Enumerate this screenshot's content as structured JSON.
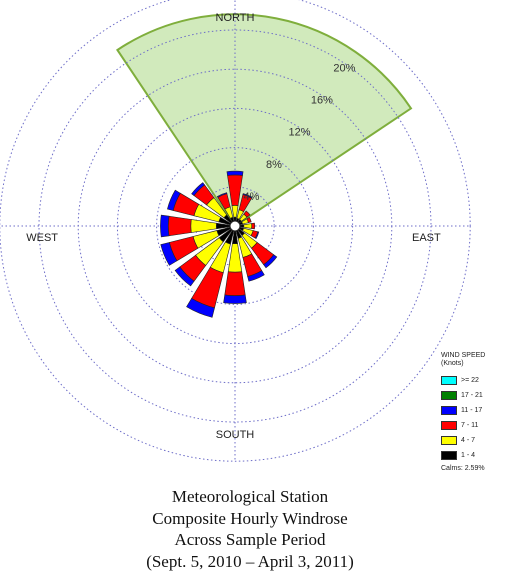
{
  "chart_data": {
    "type": "windrose",
    "title": "",
    "directions": [
      "N",
      "NNE",
      "NE",
      "ENE",
      "E",
      "ESE",
      "SE",
      "SSE",
      "S",
      "SSW",
      "SW",
      "WSW",
      "W",
      "WNW",
      "NW",
      "NNW"
    ],
    "compass_labels": {
      "north": "NORTH",
      "east": "EAST",
      "south": "SOUTH",
      "west": "WEST"
    },
    "radial_axis": {
      "unit": "%",
      "ticks": [
        4,
        8,
        12,
        16,
        20
      ],
      "tick_labels": [
        "4%",
        "8%",
        "12%",
        "16%",
        "20%"
      ],
      "max": 21.6
    },
    "grid": true,
    "highlight_sector": {
      "from_deg": -33.75,
      "to_deg": 56.25,
      "radius_pct": 21.6,
      "color": "#c9e6b0",
      "edge_color": "#7fae3c"
    },
    "series": [
      {
        "name": "1 - 4",
        "color": "#000000",
        "values": [
          0.4,
          0.3,
          0.3,
          0.3,
          0.4,
          0.4,
          0.7,
          0.8,
          1.3,
          1.4,
          1.5,
          1.4,
          1.4,
          1.2,
          0.9,
          0.4
        ]
      },
      {
        "name": "4 - 7",
        "color": "#ffff00",
        "values": [
          1.2,
          0.9,
          0.7,
          0.6,
          0.8,
          1.0,
          1.6,
          2.0,
          2.9,
          3.0,
          3.0,
          2.5,
          2.6,
          2.6,
          2.2,
          1.1
        ]
      },
      {
        "name": "7 - 11",
        "color": "#ff0000",
        "values": [
          3.1,
          1.6,
          0.4,
          0.3,
          0.3,
          0.5,
          2.1,
          2.0,
          2.4,
          3.7,
          2.0,
          2.5,
          2.3,
          2.2,
          1.6,
          1.4
        ]
      },
      {
        "name": "11 - 17",
        "color": "#0000ff",
        "values": [
          0.4,
          0.1,
          0.0,
          0.0,
          0.0,
          0.1,
          0.4,
          0.5,
          0.8,
          1.0,
          0.6,
          0.9,
          0.8,
          0.6,
          0.3,
          0.1
        ]
      },
      {
        "name": "17 - 21",
        "color": "#008000",
        "values": [
          0,
          0,
          0,
          0,
          0,
          0,
          0,
          0,
          0,
          0,
          0,
          0,
          0,
          0,
          0,
          0
        ]
      },
      {
        "name": ">= 22",
        "color": "#00ffff",
        "values": [
          0,
          0,
          0,
          0,
          0,
          0,
          0,
          0,
          0,
          0,
          0,
          0,
          0,
          0,
          0,
          0
        ]
      }
    ],
    "legend": {
      "title": "WIND SPEED",
      "units": "(Knots)",
      "position": "bottom-right",
      "calms": "Calms: 2.59%",
      "items": [
        {
          "label": ">= 22",
          "color": "#00ffff"
        },
        {
          "label": "17 - 21",
          "color": "#008000"
        },
        {
          "label": "11 - 17",
          "color": "#0000ff"
        },
        {
          "label": "7 - 11",
          "color": "#ff0000"
        },
        {
          "label": "4 - 7",
          "color": "#ffff00"
        },
        {
          "label": "1 - 4",
          "color": "#000000"
        }
      ]
    },
    "caption": [
      "Meteorological Station",
      "Composite Hourly Windrose",
      "Across Sample Period",
      "(Sept. 5, 2010 – April 3, 2011)"
    ]
  }
}
